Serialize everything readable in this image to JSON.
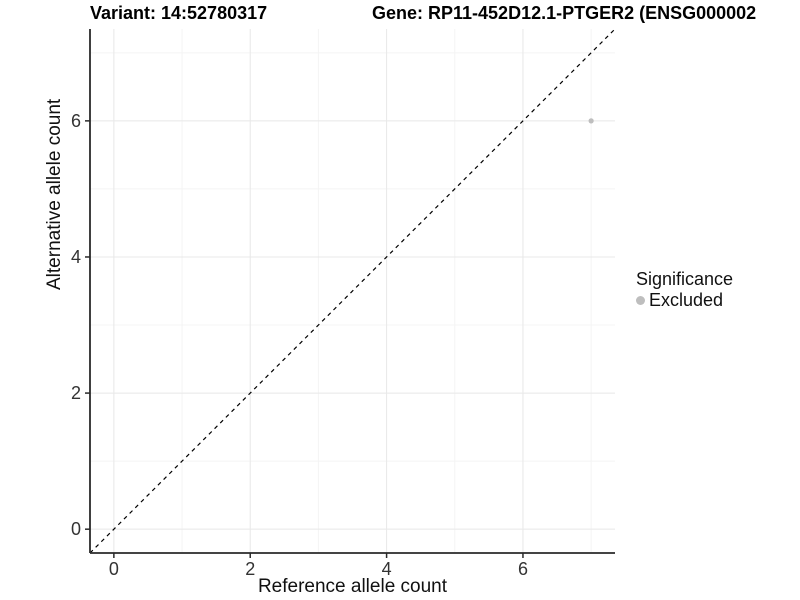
{
  "title": {
    "left": "Variant: 14:52780317",
    "right": "Gene: RP11-452D12.1-PTGER2 (ENSG000002"
  },
  "chart_data": {
    "type": "scatter",
    "xlabel": "Reference allele count",
    "ylabel": "Alternative allele count",
    "xlim": [
      -0.35,
      7.35
    ],
    "ylim": [
      -0.35,
      7.35
    ],
    "x_major_ticks": [
      0,
      2,
      4,
      6
    ],
    "x_minor_ticks": [
      1,
      3,
      5,
      7
    ],
    "y_major_ticks": [
      0,
      2,
      4,
      6
    ],
    "y_minor_ticks": [
      1,
      3,
      5,
      7
    ],
    "grid": true,
    "series": [
      {
        "name": "Excluded",
        "color": "#bebebe",
        "points": [
          [
            7,
            6
          ]
        ]
      }
    ],
    "reference_line": {
      "slope": 1,
      "intercept": 0,
      "style": "dashed",
      "color": "#000000"
    },
    "legend": {
      "title": "Significance",
      "position": "right",
      "items": [
        {
          "label": "Excluded",
          "color": "#bebebe"
        }
      ]
    }
  },
  "colors": {
    "background": "#ffffff",
    "grid_major": "#e8e8e8",
    "grid_minor": "#f4f4f4",
    "axis_line": "#2a2a2a",
    "tick_label": "#333333"
  }
}
